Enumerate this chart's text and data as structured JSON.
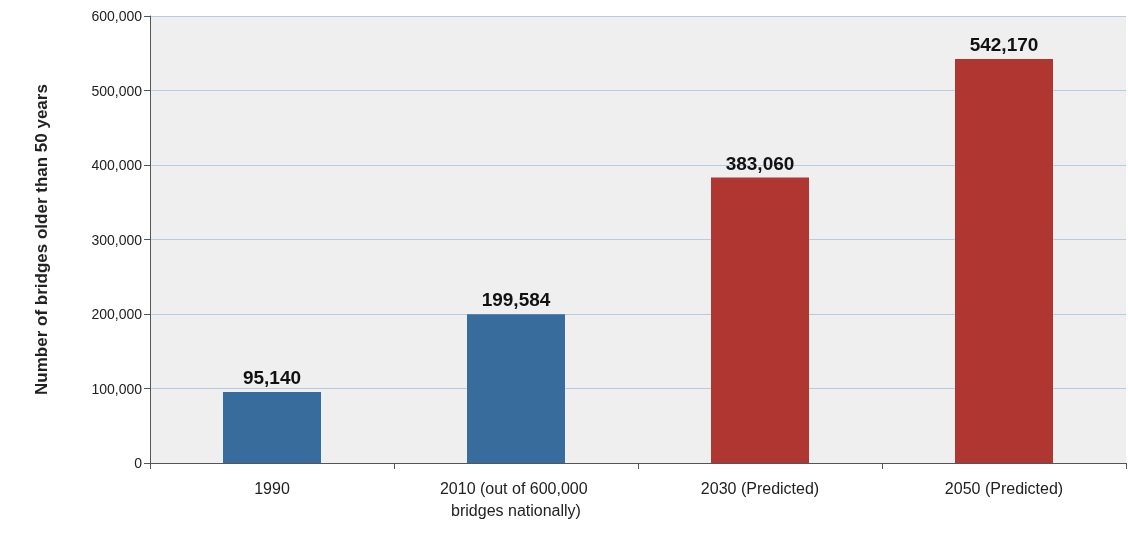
{
  "chart_data": {
    "type": "bar",
    "ylabel": "Number of bridges older than 50 years",
    "categories": [
      "1990",
      "2010 (out of 600,000 bridges nationally)",
      "2030 (Predicted)",
      "2050 (Predicted)"
    ],
    "values": [
      95140,
      199584,
      383060,
      542170
    ],
    "value_labels": [
      "95,140",
      "199,584",
      "383,060",
      "542,170"
    ],
    "colors": [
      "#386c9c",
      "#386c9c",
      "#b03632",
      "#b03632"
    ],
    "ylim": [
      0,
      600000
    ],
    "yticks": [
      0,
      {
        "value": 100000,
        "label": "100,000"
      },
      {
        "value": 200000,
        "label": "200,000"
      },
      {
        "value": 300000,
        "label": "300,000"
      },
      {
        "value": 400000,
        "label": "400,000"
      },
      {
        "value": 500000,
        "label": "500,000"
      },
      {
        "value": 600000,
        "label": "600,000"
      }
    ],
    "grid": "y"
  }
}
